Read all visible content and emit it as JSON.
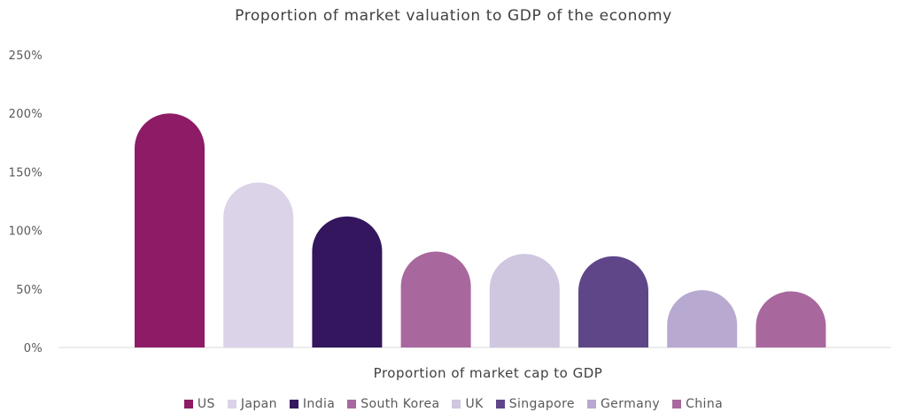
{
  "chart_data": {
    "type": "bar",
    "title": "Proportion of market valuation to GDP of the economy",
    "xlabel": "Proportion of market cap to GDP",
    "ylabel": "",
    "categories": [
      "US",
      "Japan",
      "India",
      "South Korea",
      "UK",
      "Singapore",
      "Germany",
      "China"
    ],
    "values": [
      200,
      141,
      112,
      82,
      80,
      78,
      49,
      48
    ],
    "colors": [
      "#8E1B66",
      "#DBD3E8",
      "#33165E",
      "#A8689D",
      "#CFC6E0",
      "#5F4689",
      "#B8A9D1",
      "#A8689D"
    ],
    "ylim": [
      0,
      250
    ],
    "yticks": [
      0,
      50,
      100,
      150,
      200,
      250
    ],
    "ytick_labels": [
      "0%",
      "50%",
      "100%",
      "150%",
      "200%",
      "250%"
    ],
    "grid": false,
    "legend_position": "bottom",
    "axis_color": "#D9D9D9"
  }
}
